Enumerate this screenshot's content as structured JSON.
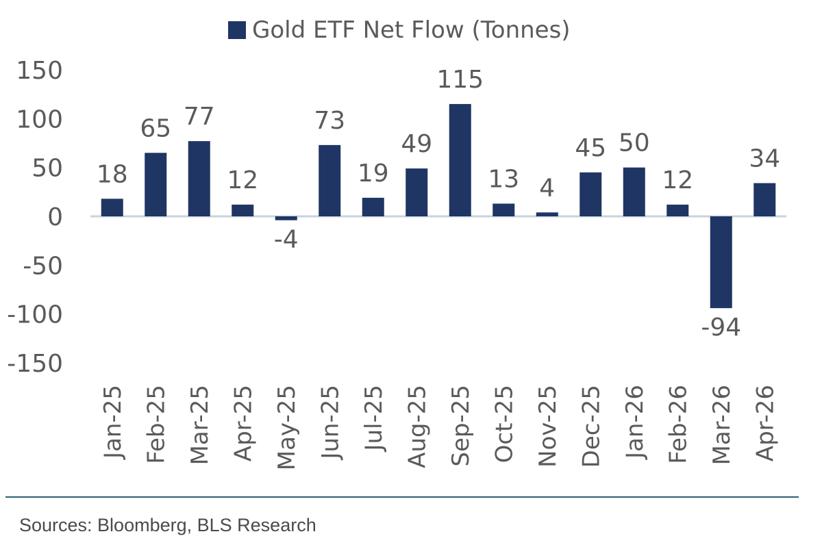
{
  "chart_data": {
    "type": "bar",
    "legend": {
      "label": "Gold ETF Net Flow (Tonnes)",
      "position": "top-center"
    },
    "categories": [
      "Jan-25",
      "Feb-25",
      "Mar-25",
      "Apr-25",
      "May-25",
      "Jun-25",
      "Jul-25",
      "Aug-25",
      "Sep-25",
      "Oct-25",
      "Nov-25",
      "Dec-25",
      "Jan-26",
      "Feb-26",
      "Mar-26",
      "Apr-26"
    ],
    "series": [
      {
        "name": "Gold ETF Net Flow (Tonnes)",
        "values": [
          18,
          65,
          77,
          12,
          -4,
          73,
          19,
          49,
          115,
          13,
          4,
          45,
          50,
          12,
          -94,
          34
        ]
      }
    ],
    "ylim": [
      -150,
      150
    ],
    "yticks": [
      150,
      100,
      50,
      0,
      -50,
      -100,
      -150
    ],
    "grid": false,
    "bar_color": "#1f3564",
    "axis_color": "#c9d3dc"
  },
  "footer": {
    "source": "Sources: Bloomberg, BLS Research"
  },
  "colors": {
    "divider": "#2a6173"
  }
}
